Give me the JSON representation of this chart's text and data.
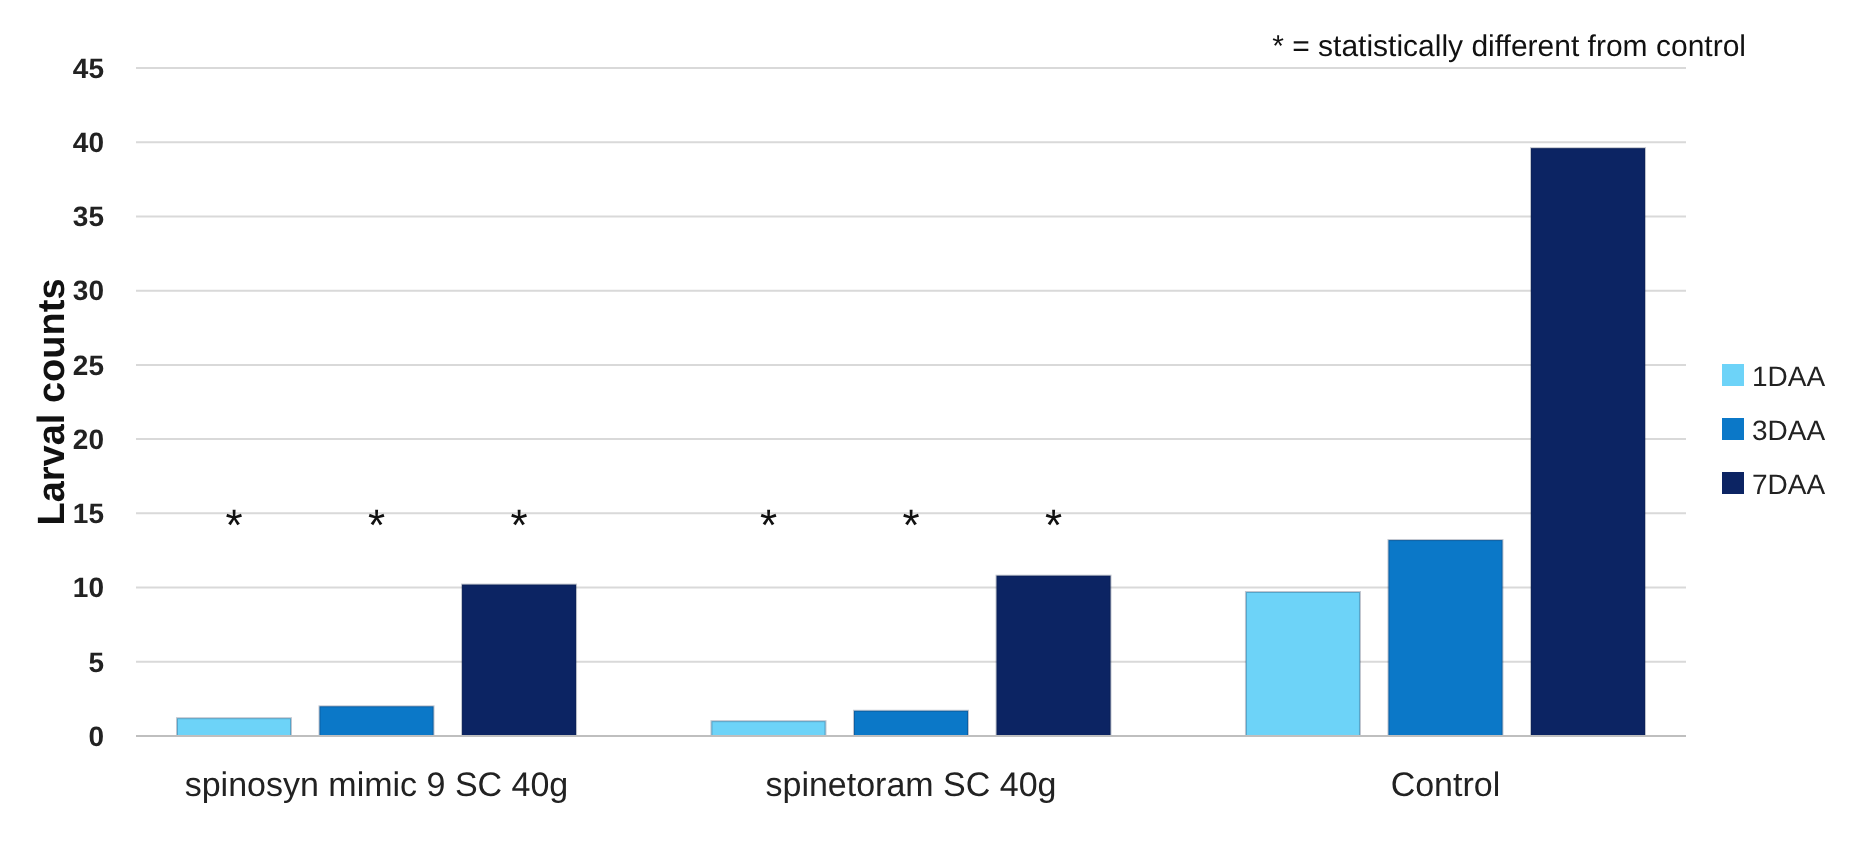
{
  "chart_data": {
    "type": "bar",
    "ylabel": "Larval counts",
    "categories": [
      "spinosyn mimic 9 SC 40g",
      "spinetoram SC 40g",
      "Control"
    ],
    "series": [
      {
        "name": "1DAA",
        "color": "#6dd3f8",
        "values": [
          1.2,
          1.0,
          9.7
        ]
      },
      {
        "name": "3DAA",
        "color": "#0b78c8",
        "values": [
          2.0,
          1.7,
          13.2
        ]
      },
      {
        "name": "7DAA",
        "color": "#0c2463",
        "values": [
          10.2,
          10.8,
          39.6
        ]
      }
    ],
    "ylim": [
      0,
      45
    ],
    "yticks": [
      0,
      5,
      10,
      15,
      20,
      25,
      30,
      35,
      40,
      45
    ],
    "grid": "y",
    "legend": "right",
    "annotations": [
      "* = statistically different from control",
      "*",
      "*",
      "*",
      "*",
      "*",
      "*"
    ]
  }
}
